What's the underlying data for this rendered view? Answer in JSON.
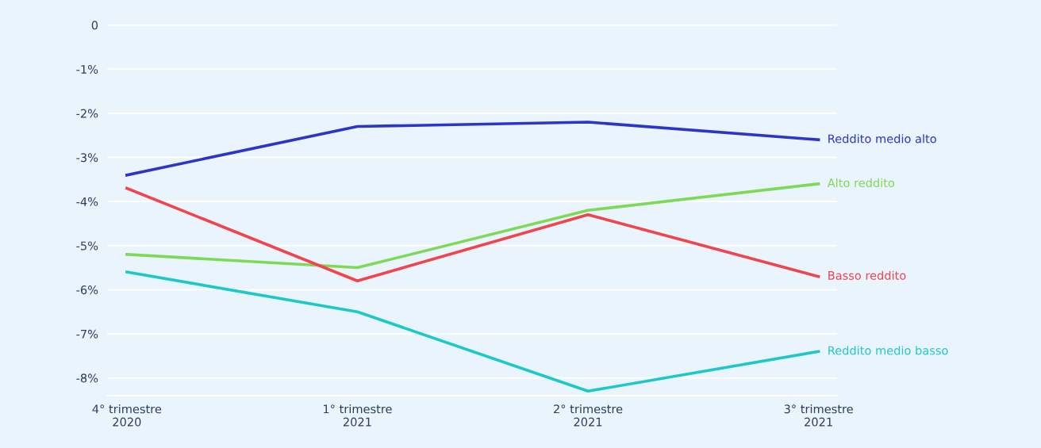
{
  "chart_data": {
    "type": "line",
    "categories": [
      "4° trimestre\n2020",
      "1° trimestre\n2021",
      "2° trimestre\n2021",
      "3° trimestre\n2021"
    ],
    "series": [
      {
        "name": "Reddito medio alto",
        "color": "#2b35c8",
        "values": [
          -3.4,
          -2.3,
          -2.2,
          -2.6
        ]
      },
      {
        "name": "Alto reddito",
        "color": "#7ed957",
        "values": [
          -5.2,
          -5.5,
          -4.2,
          -3.6
        ]
      },
      {
        "name": "Basso reddito",
        "color": "#f0444f",
        "values": [
          -3.7,
          -5.8,
          -4.3,
          -5.7
        ]
      },
      {
        "name": "Reddito medio basso",
        "color": "#1ec8c8",
        "values": [
          -5.6,
          -6.5,
          -8.3,
          -7.4
        ]
      }
    ],
    "ylim": [
      -8.4,
      0.05
    ],
    "yticks": [
      0,
      {
        "value": -1,
        "label": "-1%"
      },
      {
        "value": -2,
        "label": "-2%"
      },
      {
        "value": -3,
        "label": "-3%"
      },
      {
        "value": -4,
        "label": "-4%"
      },
      {
        "value": -5,
        "label": "-5%"
      },
      {
        "value": -6,
        "label": "-6%"
      },
      {
        "value": -7,
        "label": "-7%"
      },
      {
        "value": -8,
        "label": "-8%"
      }
    ],
    "grid": "y",
    "legend": false,
    "marker": "none",
    "line_style": "solid"
  }
}
